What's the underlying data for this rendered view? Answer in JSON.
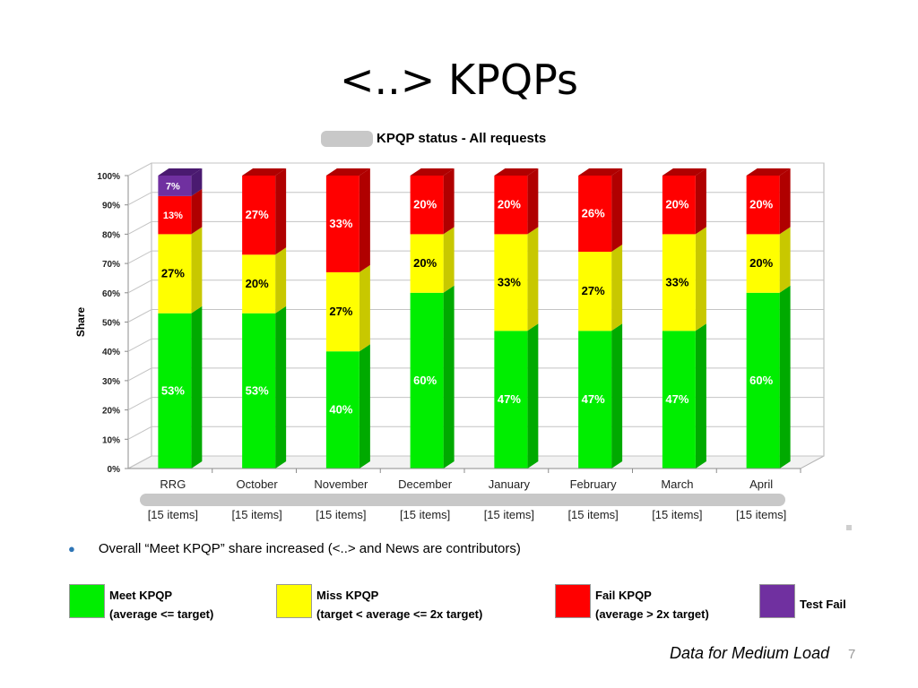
{
  "slide": {
    "title": "<..> KPQPs",
    "bullet": "Overall “Meet KPQP” share increased (<..> and News are contributors)",
    "footer_note": "Data for Medium Load",
    "page_number": "7"
  },
  "legend": [
    {
      "line1": "Meet KPQP",
      "line2": "(average <= target)",
      "color": "#00ee00"
    },
    {
      "line1": "Miss KPQP",
      "line2": "(target < average <= 2x target)",
      "color": "#ffff00"
    },
    {
      "line1": "Fail KPQP",
      "line2": "(average > 2x target)",
      "color": "#ff0000"
    },
    {
      "line1": "Test Fail",
      "line2": "",
      "color": "#7030a0"
    }
  ],
  "chart_data": {
    "type": "bar",
    "stacked": true,
    "title": "KPQP status - All requests",
    "ylabel": "Share",
    "xlabel": "",
    "ylim": [
      0,
      100
    ],
    "yticks": [
      "0%",
      "10%",
      "20%",
      "30%",
      "40%",
      "50%",
      "60%",
      "70%",
      "80%",
      "90%",
      "100%"
    ],
    "grid": true,
    "categories": [
      "RRG",
      "October",
      "November",
      "December",
      "January",
      "February",
      "March",
      "April"
    ],
    "sublabels": [
      "[15 items]",
      "[15 items]",
      "[15 items]",
      "[15 items]",
      "[15 items]",
      "[15 items]",
      "[15 items]",
      "[15 items]"
    ],
    "series": [
      {
        "key": "meet",
        "values": [
          53,
          53,
          40,
          60,
          47,
          47,
          47,
          60
        ],
        "color": "#00ee00",
        "side": "#00aa00",
        "top": "#55ff55",
        "labelColor": "#ffffff"
      },
      {
        "key": "miss",
        "values": [
          27,
          20,
          27,
          20,
          33,
          27,
          33,
          20
        ],
        "color": "#ffff00",
        "side": "#c8c800",
        "top": "#ffff77",
        "labelColor": "#000000"
      },
      {
        "key": "fail",
        "values": [
          13,
          27,
          33,
          20,
          20,
          26,
          20,
          20
        ],
        "color": "#ff0000",
        "side": "#b00000",
        "top": "#ff5555",
        "labelColor": "#ffffff"
      },
      {
        "key": "test_fail",
        "values": [
          7,
          0,
          0,
          0,
          0,
          0,
          0,
          0
        ],
        "color": "#7030a0",
        "side": "#4a1a70",
        "top": "#7030a0",
        "labelColor": "#ffffff"
      }
    ],
    "data_labels": [
      [
        "53%",
        "27%",
        "13%",
        "7%"
      ],
      [
        "53%",
        "20%",
        "27%",
        null
      ],
      [
        "40%",
        "27%",
        "33%",
        null
      ],
      [
        "60%",
        "20%",
        "20%",
        null
      ],
      [
        "47%",
        "33%",
        "20%",
        null
      ],
      [
        "47%",
        "27%",
        "26%",
        null
      ],
      [
        "47%",
        "33%",
        "20%",
        null
      ],
      [
        "60%",
        "20%",
        "20%",
        null
      ]
    ]
  }
}
